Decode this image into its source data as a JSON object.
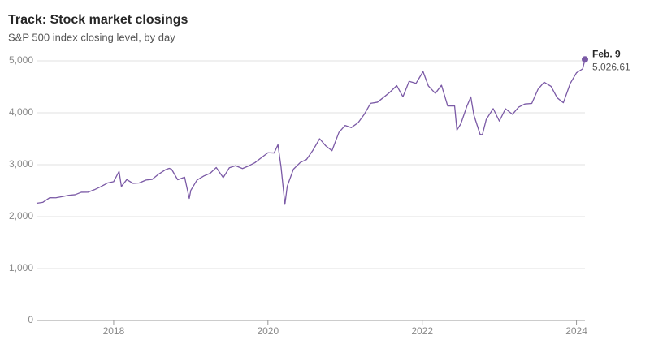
{
  "chart_data": {
    "type": "line",
    "title": "Track: Stock market closings",
    "subtitle": "S&P 500 index closing level, by day",
    "x": [
      2017.0,
      2017.08,
      2017.17,
      2017.25,
      2017.33,
      2017.42,
      2017.5,
      2017.58,
      2017.67,
      2017.75,
      2017.83,
      2017.92,
      2018.0,
      2018.07,
      2018.1,
      2018.17,
      2018.25,
      2018.33,
      2018.42,
      2018.5,
      2018.58,
      2018.67,
      2018.72,
      2018.75,
      2018.83,
      2018.92,
      2018.98,
      2019.0,
      2019.08,
      2019.17,
      2019.25,
      2019.33,
      2019.42,
      2019.5,
      2019.58,
      2019.67,
      2019.75,
      2019.83,
      2019.92,
      2020.0,
      2020.08,
      2020.13,
      2020.17,
      2020.22,
      2020.25,
      2020.33,
      2020.42,
      2020.5,
      2020.58,
      2020.67,
      2020.75,
      2020.83,
      2020.92,
      2021.0,
      2021.08,
      2021.17,
      2021.25,
      2021.33,
      2021.42,
      2021.5,
      2021.58,
      2021.67,
      2021.75,
      2021.83,
      2021.92,
      2022.0,
      2022.01,
      2022.08,
      2022.17,
      2022.25,
      2022.33,
      2022.42,
      2022.45,
      2022.5,
      2022.58,
      2022.63,
      2022.67,
      2022.75,
      2022.78,
      2022.83,
      2022.92,
      2023.0,
      2023.08,
      2023.17,
      2023.25,
      2023.33,
      2023.42,
      2023.5,
      2023.58,
      2023.67,
      2023.75,
      2023.83,
      2023.92,
      2024.0,
      2024.08,
      2024.11
    ],
    "series": [
      {
        "name": "S&P 500",
        "color": "#7b5aa6",
        "values": [
          2258,
          2275,
          2364,
          2363,
          2384,
          2412,
          2423,
          2470,
          2472,
          2519,
          2575,
          2648,
          2674,
          2873,
          2581,
          2714,
          2641,
          2648,
          2705,
          2718,
          2816,
          2902,
          2930,
          2914,
          2711,
          2760,
          2351,
          2507,
          2704,
          2784,
          2834,
          2946,
          2752,
          2942,
          2980,
          2926,
          2977,
          3038,
          3141,
          3231,
          3226,
          3386,
          2954,
          2237,
          2585,
          2912,
          3044,
          3100,
          3271,
          3500,
          3363,
          3270,
          3622,
          3756,
          3714,
          3811,
          3973,
          4181,
          4204,
          4298,
          4395,
          4523,
          4308,
          4605,
          4567,
          4766,
          4797,
          4516,
          4374,
          4530,
          4132,
          4132,
          3667,
          3785,
          4130,
          4305,
          3955,
          3586,
          3577,
          3872,
          4080,
          3840,
          4077,
          3970,
          4109,
          4169,
          4180,
          4450,
          4589,
          4508,
          4288,
          4194,
          4568,
          4770,
          4846,
          5026.61
        ]
      }
    ],
    "end_label": {
      "date": "Feb. 9",
      "value_label": "5,026.61"
    },
    "xlim": [
      2017.0,
      2024.11
    ],
    "xticks": [
      2018,
      2020,
      2022,
      2024
    ],
    "ylim": [
      0,
      5000
    ],
    "yticks": [
      0,
      {
        "value": 1000,
        "label": "1,000"
      },
      {
        "value": 2000,
        "label": "2,000"
      },
      {
        "value": 3000,
        "label": "3,000"
      },
      {
        "value": 4000,
        "label": "4,000"
      },
      {
        "value": 5000,
        "label": "5,000"
      }
    ],
    "grid": true
  }
}
